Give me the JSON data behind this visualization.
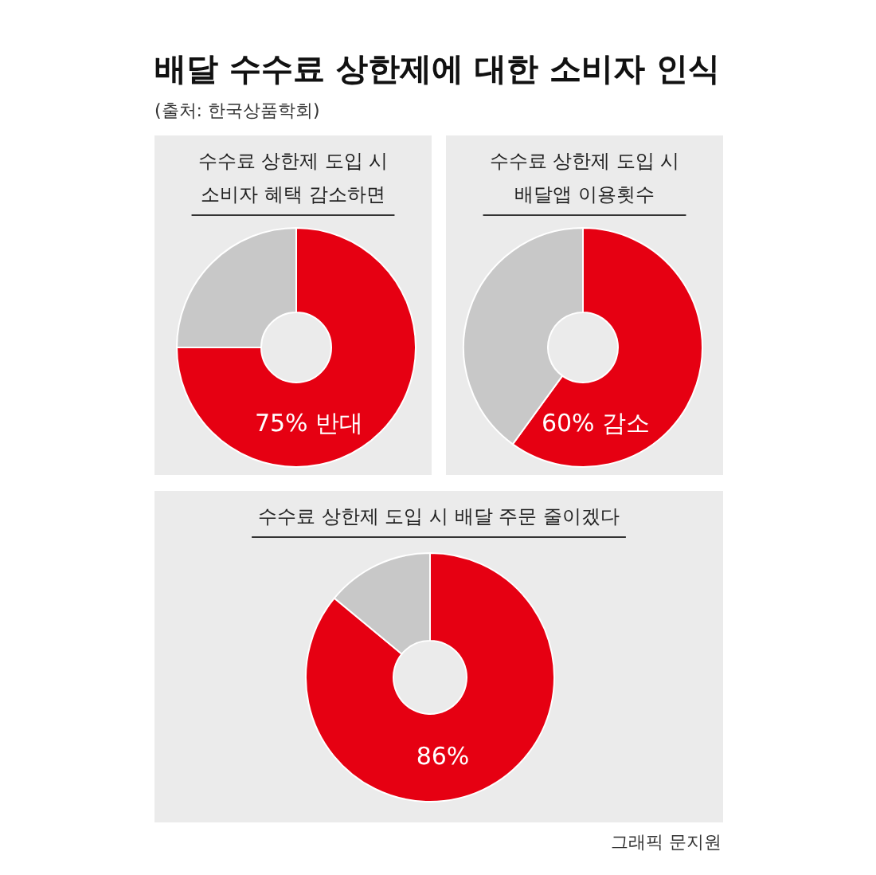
{
  "chart_data": [
    {
      "type": "other",
      "title": "배달 수수료 상한제에 대한 소비자 인식",
      "subtitle": "(출처: 한국상품학회)",
      "annotations": [
        "그래픽 문지원"
      ]
    },
    {
      "type": "donut",
      "title": "수수료 상한제 도입 시 소비자 혜택 감소하면",
      "categories": [
        null,
        null
      ],
      "values": [
        75,
        25
      ],
      "colors": [
        "#e60012",
        "#c8c8c8"
      ],
      "value_labels": [
        "75% 반대",
        null
      ]
    },
    {
      "type": "donut",
      "title": "수수료 상한제 도입 시 배달앱 이용횟수",
      "categories": [
        null,
        null
      ],
      "values": [
        60,
        40
      ],
      "colors": [
        "#e60012",
        "#c8c8c8"
      ],
      "value_labels": [
        "60% 감소",
        null
      ]
    },
    {
      "type": "donut",
      "title": "수수료 상한제 도입 시 배달 주문 줄이겠다",
      "categories": [
        null,
        null
      ],
      "values": [
        86,
        14
      ],
      "colors": [
        "#e60012",
        "#c8c8c8"
      ],
      "value_labels": [
        "86%",
        null
      ]
    }
  ]
}
